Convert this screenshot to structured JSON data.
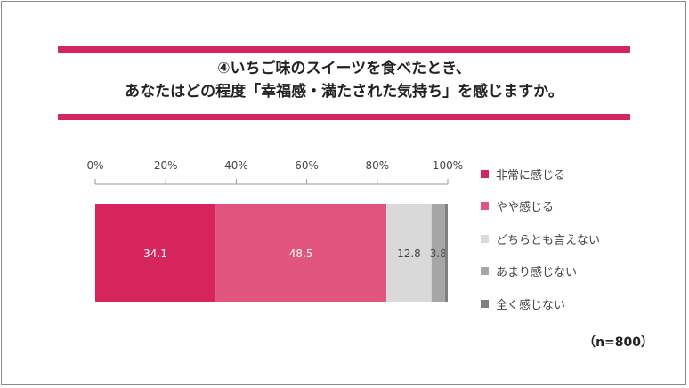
{
  "title": {
    "line1": "④いちご味のスイーツを食べたとき、",
    "line2": "あなたはどの程度「幸福感・満たされた気持ち」を感じますか。"
  },
  "colors": {
    "accent": "#d6245c",
    "text": "#333333",
    "axis": "#999999"
  },
  "sample_note": "（n=800）",
  "chart_data": {
    "type": "bar",
    "orientation": "horizontal",
    "stacked": true,
    "xlim": [
      0,
      100
    ],
    "x_ticks": [
      "0%",
      "20%",
      "40%",
      "60%",
      "80%",
      "100%"
    ],
    "tick_values": [
      0,
      20,
      40,
      60,
      80,
      100
    ],
    "legend_position": "right",
    "series": [
      {
        "name": "非常に感じる",
        "values": [
          34.1
        ],
        "label": "34.1",
        "color": "#d6245c",
        "label_color": "#ffffff"
      },
      {
        "name": "やや感じる",
        "values": [
          48.5
        ],
        "label": "48.5",
        "color": "#e0547e",
        "label_color": "#ffffff"
      },
      {
        "name": "どちらとも言えない",
        "values": [
          12.8
        ],
        "label": "12.8",
        "color": "#d9d9d9",
        "label_color": "#444444"
      },
      {
        "name": "あまり感じない",
        "values": [
          3.8
        ],
        "label": "3.8",
        "color": "#a6a6a6",
        "label_color": "#444444"
      },
      {
        "name": "全く感じない",
        "values": [
          0.8
        ],
        "label": "",
        "color": "#808080",
        "label_color": "#444444"
      }
    ]
  }
}
